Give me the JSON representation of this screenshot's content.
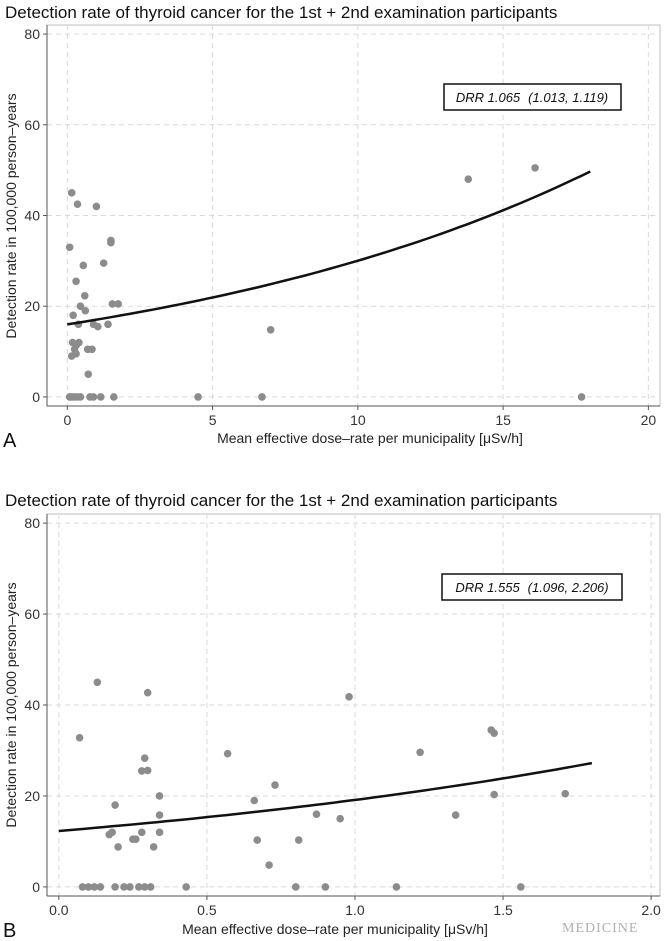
{
  "brand": "MEDICINE",
  "chart_data": [
    {
      "type": "scatter",
      "panel": "A",
      "title": "Detection rate of thyroid cancer for the 1st + 2nd examination participants",
      "xlabel": "Mean effective dose–rate per municipality [μSv/h]",
      "ylabel": "Detection rate in 100,000 person–years",
      "xlim": [
        -0.7,
        20.4
      ],
      "ylim": [
        -2,
        82
      ],
      "xticks": [
        0,
        5,
        10,
        15,
        20
      ],
      "yticks": [
        0,
        20,
        40,
        60,
        80
      ],
      "xtick_labels": [
        "0",
        "5",
        "10",
        "15",
        "20"
      ],
      "ytick_labels": [
        "0",
        "20",
        "40",
        "60",
        "80"
      ],
      "grid": true,
      "annotation": {
        "label": "DRR 1.065",
        "ci": "(1.013, 1.119)",
        "position": "top-right"
      },
      "fit": {
        "type": "exponential",
        "x_start": 0,
        "x_end": 18,
        "y_intercept": 16.0,
        "rate_per_unit": 1.065
      },
      "series": [
        {
          "points": [
            [
              0.08,
              0
            ],
            [
              0.12,
              0
            ],
            [
              0.18,
              0
            ],
            [
              0.25,
              0
            ],
            [
              0.35,
              0
            ],
            [
              0.45,
              0
            ],
            [
              0.78,
              0
            ],
            [
              0.9,
              0
            ],
            [
              1.15,
              0
            ],
            [
              1.6,
              0
            ],
            [
              4.5,
              0
            ],
            [
              6.7,
              0
            ],
            [
              17.7,
              0
            ],
            [
              0.72,
              5
            ],
            [
              0.15,
              9
            ],
            [
              0.3,
              9.5
            ],
            [
              0.25,
              10.5
            ],
            [
              0.32,
              11.5
            ],
            [
              0.7,
              10.5
            ],
            [
              0.85,
              10.5
            ],
            [
              0.18,
              12
            ],
            [
              0.4,
              12
            ],
            [
              0.38,
              16
            ],
            [
              0.9,
              16
            ],
            [
              1.05,
              15.5
            ],
            [
              1.4,
              16
            ],
            [
              7.0,
              14.8
            ],
            [
              0.2,
              18
            ],
            [
              0.62,
              19
            ],
            [
              0.45,
              20
            ],
            [
              1.55,
              20.5
            ],
            [
              1.75,
              20.5
            ],
            [
              0.6,
              22.3
            ],
            [
              0.3,
              25.5
            ],
            [
              0.55,
              29
            ],
            [
              1.25,
              29.5
            ],
            [
              0.08,
              33
            ],
            [
              1.5,
              34
            ],
            [
              1.5,
              34.5
            ],
            [
              0.15,
              45
            ],
            [
              0.35,
              42.5
            ],
            [
              1.0,
              42
            ],
            [
              13.8,
              48
            ],
            [
              16.1,
              50.5
            ]
          ]
        }
      ]
    },
    {
      "type": "scatter",
      "panel": "B",
      "title": "Detection rate of thyroid cancer for the 1st + 2nd examination participants",
      "xlabel": "Mean effective dose–rate per municipality [μSv/h]",
      "ylabel": "Detection rate in 100,000 person–years",
      "xlim": [
        -0.04,
        2.03
      ],
      "ylim": [
        -2,
        82
      ],
      "xticks": [
        0.0,
        0.5,
        1.0,
        1.5,
        2.0
      ],
      "yticks": [
        0,
        20,
        40,
        60,
        80
      ],
      "xtick_labels": [
        "0.0",
        "0.5",
        "1.0",
        "1.5",
        "2.0"
      ],
      "ytick_labels": [
        "0",
        "20",
        "40",
        "60",
        "80"
      ],
      "grid": true,
      "annotation": {
        "label": "DRR 1.555",
        "ci": "(1.096, 2.206)",
        "position": "top-right"
      },
      "fit": {
        "type": "exponential",
        "x_start": 0,
        "x_end": 1.8,
        "y_intercept": 12.3,
        "rate_per_unit": 1.555
      },
      "series": [
        {
          "points": [
            [
              0.08,
              0
            ],
            [
              0.1,
              0
            ],
            [
              0.12,
              0
            ],
            [
              0.14,
              0
            ],
            [
              0.19,
              0
            ],
            [
              0.22,
              0
            ],
            [
              0.24,
              0
            ],
            [
              0.27,
              0
            ],
            [
              0.29,
              0
            ],
            [
              0.31,
              0
            ],
            [
              0.43,
              0
            ],
            [
              0.8,
              0
            ],
            [
              0.9,
              0
            ],
            [
              1.14,
              0
            ],
            [
              1.56,
              0
            ],
            [
              0.07,
              32.8
            ],
            [
              0.13,
              45
            ],
            [
              0.3,
              42.7
            ],
            [
              0.98,
              41.8
            ],
            [
              0.17,
              11.5
            ],
            [
              0.18,
              12
            ],
            [
              0.19,
              18
            ],
            [
              0.2,
              8.8
            ],
            [
              0.25,
              10.5
            ],
            [
              0.26,
              10.5
            ],
            [
              0.28,
              25.5
            ],
            [
              0.28,
              12
            ],
            [
              0.29,
              28.3
            ],
            [
              0.3,
              25.6
            ],
            [
              0.32,
              8.8
            ],
            [
              0.34,
              12
            ],
            [
              0.34,
              15.8
            ],
            [
              0.34,
              20
            ],
            [
              0.57,
              29.3
            ],
            [
              0.66,
              19
            ],
            [
              0.67,
              10.3
            ],
            [
              0.71,
              4.8
            ],
            [
              0.73,
              22.4
            ],
            [
              0.81,
              10.3
            ],
            [
              0.87,
              16
            ],
            [
              0.95,
              15
            ],
            [
              1.22,
              29.6
            ],
            [
              1.34,
              15.8
            ],
            [
              1.46,
              34.5
            ],
            [
              1.47,
              33.8
            ],
            [
              1.47,
              20.3
            ],
            [
              1.71,
              20.5
            ]
          ]
        }
      ]
    }
  ]
}
